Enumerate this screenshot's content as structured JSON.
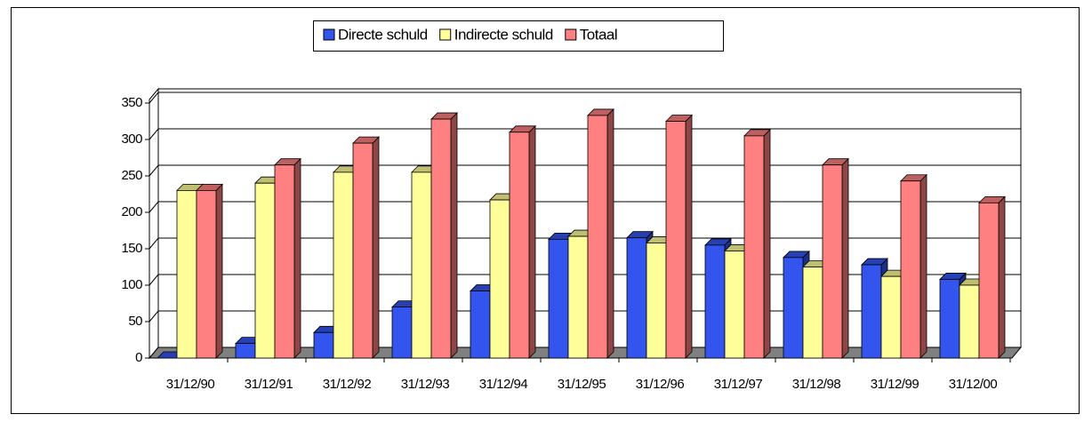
{
  "chart_data": {
    "type": "bar3d",
    "categories": [
      "31/12/90",
      "31/12/91",
      "31/12/92",
      "31/12/93",
      "31/12/94",
      "31/12/95",
      "31/12/96",
      "31/12/97",
      "31/12/98",
      "31/12/99",
      "31/12/00"
    ],
    "series": [
      {
        "name": "Directe schuld",
        "color": "#3355ee",
        "values": [
          0,
          20,
          35,
          70,
          92,
          163,
          165,
          155,
          138,
          128,
          108
        ]
      },
      {
        "name": "Indirecte schuld",
        "color": "#ffff99",
        "values": [
          230,
          240,
          255,
          255,
          217,
          167,
          158,
          147,
          125,
          112,
          100
        ]
      },
      {
        "name": "Totaal",
        "color": "#ff8080",
        "values": [
          230,
          265,
          295,
          328,
          310,
          333,
          325,
          305,
          265,
          243,
          213
        ]
      }
    ],
    "ylim": [
      0,
      350
    ],
    "yticks": [
      0,
      50,
      100,
      150,
      200,
      250,
      300,
      350
    ],
    "grid": true
  }
}
